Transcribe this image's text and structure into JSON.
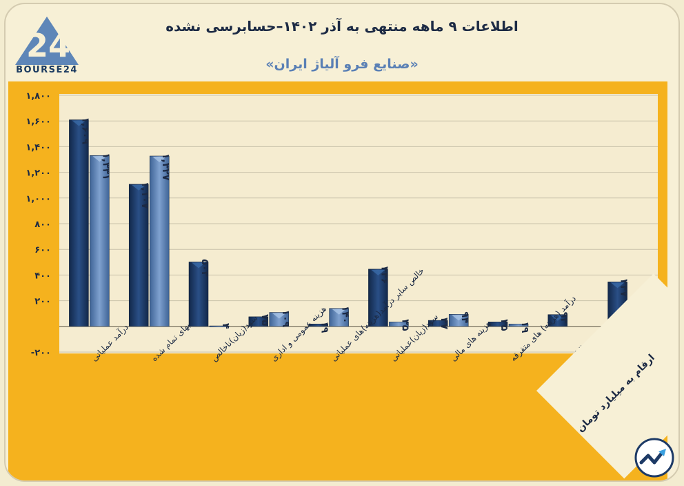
{
  "header": {
    "title": "اطلاعات ۹ ماهه منتهی به آذر ۱۴۰۲–حسابرسی نشده",
    "subtitle": "«صنایع فرو آلیاژ ایران»",
    "logo_text": "BOURSE24",
    "logo_mark": "24"
  },
  "footer": {
    "units_note": "ارقام به میلیارد تومان",
    "icon": "trend-up-icon"
  },
  "colors": {
    "series1": "#1d3a66",
    "series2": "#5a7fb0",
    "panel": "#f5b21e",
    "plot_bg": "#f5ecd0",
    "background": "#f7f0d6"
  },
  "chart_data": {
    "type": "bar",
    "title": "اطلاعات ۹ ماهه منتهی به آذر ۱۴۰۲–حسابرسی نشده",
    "categories": [
      "درآمد عملیاتی",
      "بهای تمام شده",
      "سود(زیان)ناخالص",
      "هزینه عمومی و اداری",
      "خالص سایر درآمد(هزینه)های عملیاتی",
      "سود(زیان)عملیاتی",
      "هزینه های مالی",
      "درآمد (هزینه) های متفرقه",
      "مالیات",
      "سود(زیان) خالص"
    ],
    "series": [
      {
        "values": [
          1609,
          1107,
          502,
          75,
          19,
          446,
          47,
          35,
          92,
          347
        ],
        "labels": [
          "۱,۶۰۹",
          "۱,۱۰۷",
          "۵۰۲",
          "۷۵",
          "۱۹",
          "۴۴۶",
          "۴۷",
          "۳۵",
          "۹۲",
          "۳۴۷"
        ]
      },
      {
        "values": [
          1331,
          1327,
          4,
          109,
          140,
          35,
          94,
          19,
          null,
          -35
        ],
        "labels": [
          "۱,۳۳۱",
          "۱,۳۲۷",
          "۴",
          "۱۰۹",
          "۱۴۰",
          "۳۵",
          "۹۴",
          "۱۹",
          "",
          "-۳۵"
        ]
      }
    ],
    "yticks": [
      -200,
      200,
      400,
      600,
      800,
      1000,
      1200,
      1400,
      1600,
      1800
    ],
    "ytick_labels": [
      "-۲۰۰",
      "۲۰۰",
      "۴۰۰",
      "۶۰۰",
      "۸۰۰",
      "۱,۰۰۰",
      "۱,۲۰۰",
      "۱,۴۰۰",
      "۱,۶۰۰",
      "۱,۸۰۰"
    ],
    "ylim": [
      -200,
      1800
    ],
    "grid": true,
    "legend": "none",
    "xlabel": "",
    "ylabel": ""
  }
}
